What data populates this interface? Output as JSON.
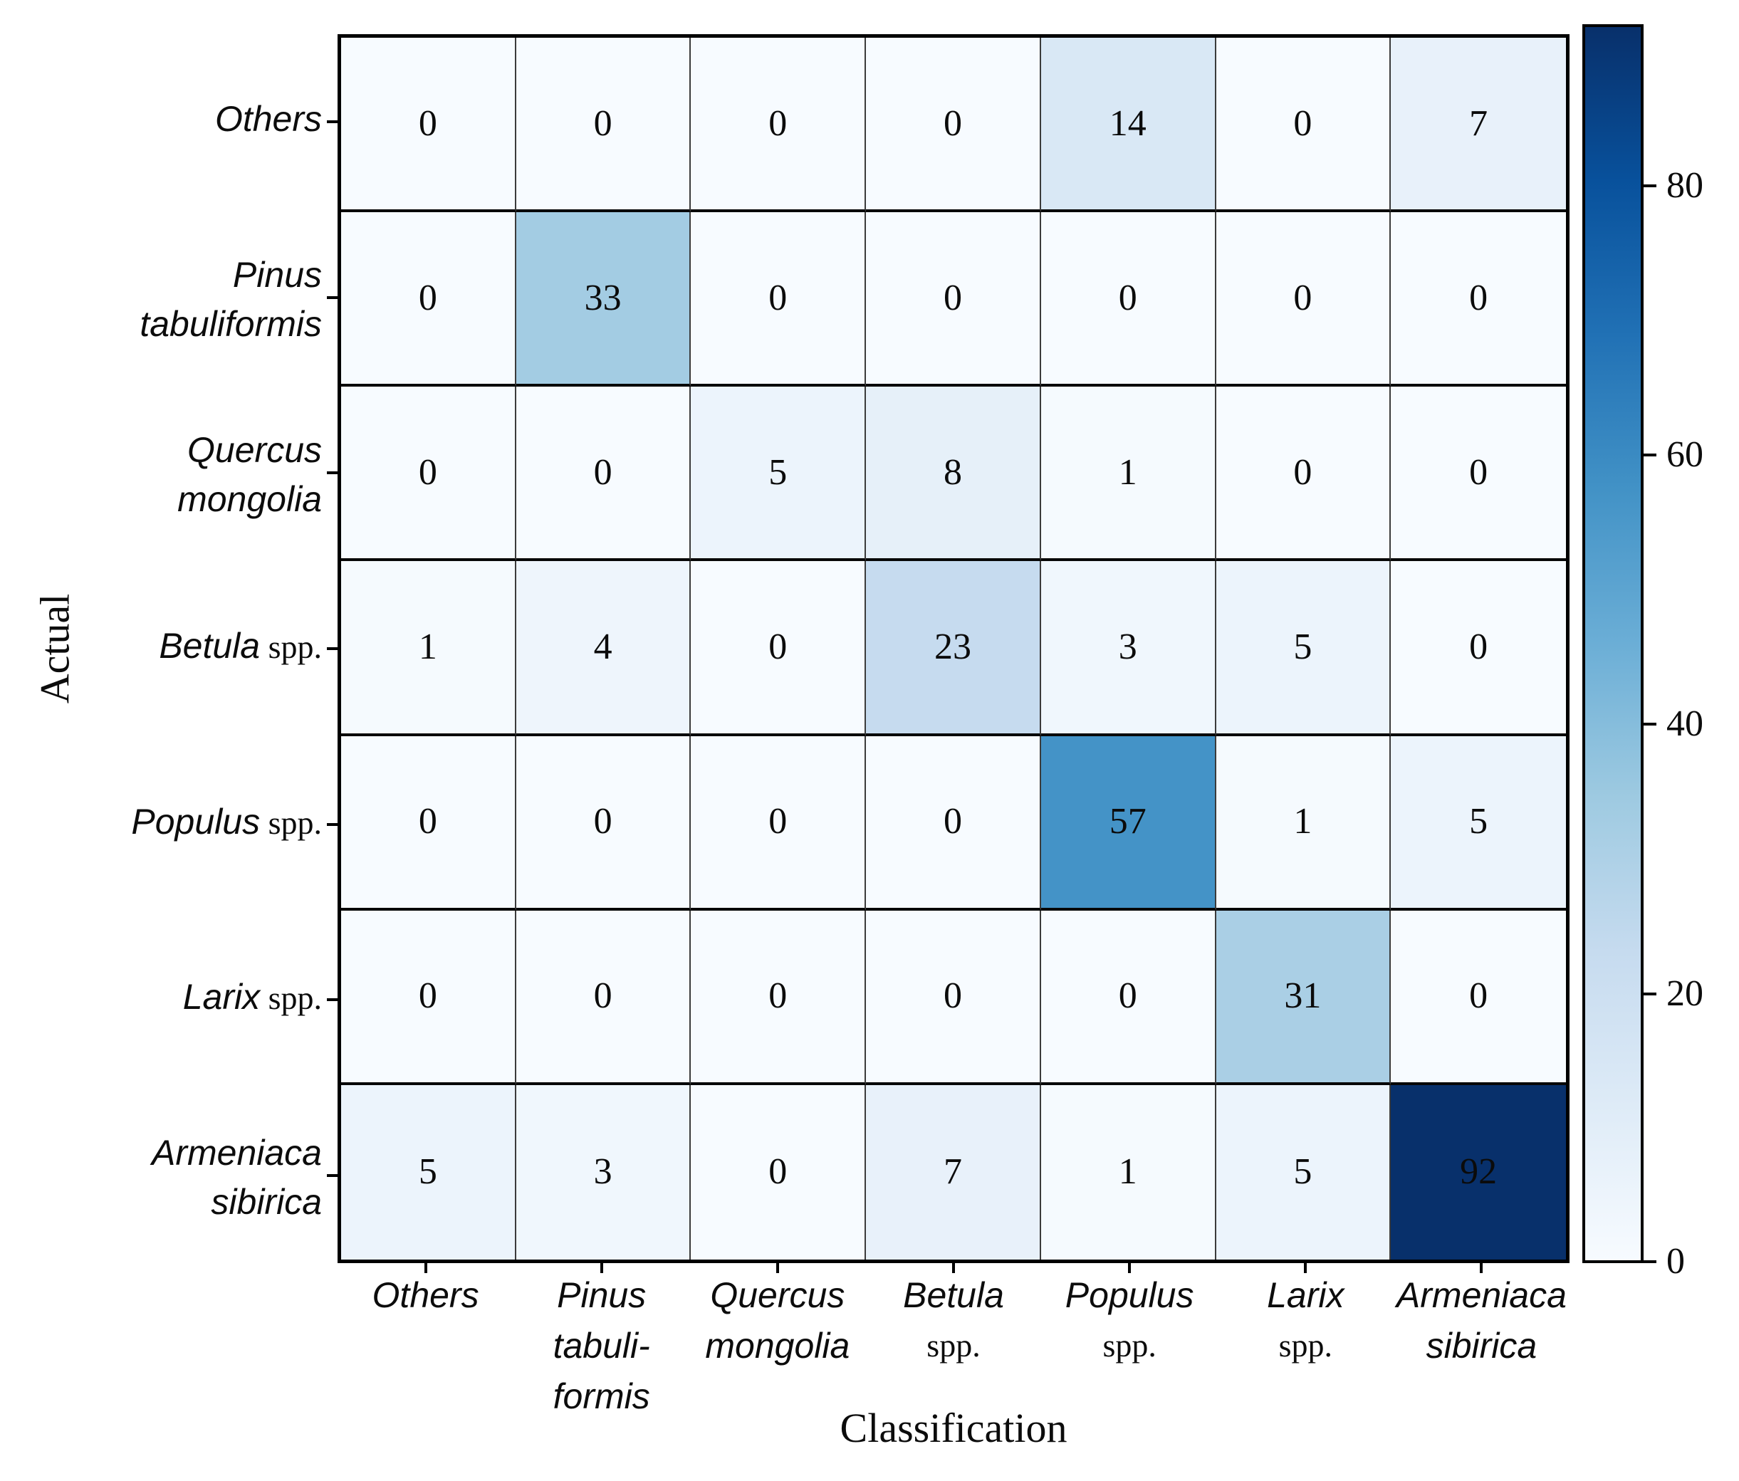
{
  "figure": {
    "background": "#ffffff"
  },
  "chart_data": {
    "type": "heatmap",
    "title": "",
    "xlabel": "Classification",
    "ylabel": "Actual",
    "x_categories": [
      "Others",
      "Pinus tabuliformis",
      "Quercus mongolia",
      "Betula spp.",
      "Populus spp.",
      "Larix spp.",
      "Armeniaca sibirica"
    ],
    "y_categories": [
      "Others",
      "Pinus tabuliformis",
      "Quercus mongolia",
      "Betula spp.",
      "Populus spp.",
      "Larix spp.",
      "Armeniaca sibirica"
    ],
    "matrix": [
      [
        0,
        0,
        0,
        0,
        14,
        0,
        7
      ],
      [
        0,
        33,
        0,
        0,
        0,
        0,
        0
      ],
      [
        0,
        0,
        5,
        8,
        1,
        0,
        0
      ],
      [
        1,
        4,
        0,
        23,
        3,
        5,
        0
      ],
      [
        0,
        0,
        0,
        0,
        57,
        1,
        5
      ],
      [
        0,
        0,
        0,
        0,
        0,
        31,
        0
      ],
      [
        5,
        3,
        0,
        7,
        1,
        5,
        92
      ]
    ],
    "vmin": 0,
    "vmax": 92,
    "colormap": "Blues",
    "grid": true,
    "legend_position": "right-colorbar",
    "colorbar_ticks": [
      80,
      60,
      40,
      20,
      0
    ],
    "colormap_stops": [
      [
        0.0,
        [
          247,
          251,
          255
        ]
      ],
      [
        0.125,
        [
          222,
          235,
          247
        ]
      ],
      [
        0.25,
        [
          198,
          219,
          239
        ]
      ],
      [
        0.375,
        [
          158,
          202,
          225
        ]
      ],
      [
        0.5,
        [
          107,
          174,
          214
        ]
      ],
      [
        0.625,
        [
          66,
          146,
          198
        ]
      ],
      [
        0.75,
        [
          33,
          113,
          181
        ]
      ],
      [
        0.875,
        [
          8,
          81,
          156
        ]
      ],
      [
        1.0,
        [
          8,
          48,
          107
        ]
      ]
    ],
    "accent_dark": "#08306b",
    "accent_light": "#f7fbff"
  },
  "labels": {
    "row_labels": [
      {
        "lines": [
          [
            {
              "t": "Others",
              "it": true
            }
          ]
        ]
      },
      {
        "lines": [
          [
            {
              "t": "Pinus",
              "it": true
            }
          ],
          [
            {
              "t": "tabuliformis",
              "it": true
            }
          ]
        ]
      },
      {
        "lines": [
          [
            {
              "t": "Quercus",
              "it": true
            }
          ],
          [
            {
              "t": "mongolia",
              "it": true
            }
          ]
        ]
      },
      {
        "lines": [
          [
            {
              "t": "Betula",
              "it": true
            },
            {
              "t": " spp.",
              "it": false
            }
          ]
        ]
      },
      {
        "lines": [
          [
            {
              "t": "Populus",
              "it": true
            },
            {
              "t": " spp.",
              "it": false
            }
          ]
        ]
      },
      {
        "lines": [
          [
            {
              "t": "Larix",
              "it": true
            },
            {
              "t": " spp.",
              "it": false
            }
          ]
        ]
      },
      {
        "lines": [
          [
            {
              "t": "Armeniaca",
              "it": true
            }
          ],
          [
            {
              "t": "sibirica",
              "it": true
            }
          ]
        ]
      }
    ],
    "col_labels": [
      {
        "lines": [
          [
            {
              "t": "Others",
              "it": true
            }
          ]
        ]
      },
      {
        "lines": [
          [
            {
              "t": "Pinus",
              "it": true
            }
          ],
          [
            {
              "t": "tabuli-",
              "it": true
            }
          ],
          [
            {
              "t": "formis",
              "it": true
            }
          ]
        ]
      },
      {
        "lines": [
          [
            {
              "t": "Quercus",
              "it": true
            }
          ],
          [
            {
              "t": "mongolia",
              "it": true
            }
          ]
        ]
      },
      {
        "lines": [
          [
            {
              "t": "Betula",
              "it": true
            }
          ],
          [
            {
              "t": "spp.",
              "it": false
            }
          ]
        ]
      },
      {
        "lines": [
          [
            {
              "t": "Populus",
              "it": true
            }
          ],
          [
            {
              "t": "spp.",
              "it": false
            }
          ]
        ]
      },
      {
        "lines": [
          [
            {
              "t": "Larix",
              "it": true
            }
          ],
          [
            {
              "t": "spp.",
              "it": false
            }
          ]
        ]
      },
      {
        "lines": [
          [
            {
              "t": "Armeniaca",
              "it": true
            }
          ],
          [
            {
              "t": "sibirica",
              "it": true
            }
          ]
        ]
      }
    ]
  },
  "style": {
    "outer_border_color": "#000000",
    "h_gridline_color": "#070707",
    "v_gridline_color": "#3b3b3b",
    "text_color": "#0c0c0c"
  }
}
